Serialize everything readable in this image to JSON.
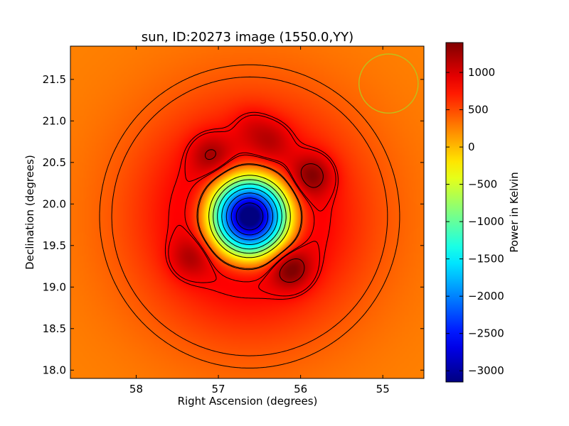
{
  "chart_data": {
    "type": "heatmap",
    "title": "sun, ID:20273 image (1550.0,YY)",
    "xlabel": "Right Ascension (degrees)",
    "ylabel": "Declination (degrees)",
    "colorbar_label": "Power in Kelvin",
    "colormap": "jet",
    "xlim": [
      58.8,
      54.5
    ],
    "ylim": [
      17.9,
      21.9
    ],
    "x_ticks": [
      58,
      57,
      56,
      55
    ],
    "x_tick_labels": [
      "58",
      "57",
      "56",
      "55"
    ],
    "y_ticks": [
      18.0,
      18.5,
      19.0,
      19.5,
      20.0,
      20.5,
      21.0,
      21.5
    ],
    "y_tick_labels": [
      "18.0",
      "18.5",
      "19.0",
      "19.5",
      "20.0",
      "20.5",
      "21.0",
      "21.5"
    ],
    "colorbar_range": [
      -3150,
      1400
    ],
    "colorbar_ticks": [
      1000,
      500,
      0,
      -500,
      -1000,
      -1500,
      -2000,
      -2500,
      -3000
    ],
    "colorbar_tick_labels": [
      "1000",
      "500",
      "0",
      "−500",
      "−1000",
      "−1500",
      "−2000",
      "−2500",
      "−3000"
    ],
    "background_level": 250,
    "minimum": {
      "ra": 56.62,
      "dec": 19.85,
      "value": -3100
    },
    "bright_spots": [
      {
        "ra": 57.1,
        "dec": 20.6,
        "value": 1100
      },
      {
        "ra": 56.35,
        "dec": 20.78,
        "value": 1000
      },
      {
        "ra": 55.85,
        "dec": 20.35,
        "value": 1250
      },
      {
        "ra": 56.12,
        "dec": 19.22,
        "value": 1300
      },
      {
        "ra": 57.35,
        "dec": 19.35,
        "value": 1050
      },
      {
        "ra": 56.6,
        "dec": 20.95,
        "value": 900
      }
    ],
    "beam_circle": {
      "ra": 54.93,
      "dec": 21.45,
      "radius_deg": 0.36
    },
    "contour_style": {
      "positive": "solid",
      "negative": "dashed"
    }
  }
}
